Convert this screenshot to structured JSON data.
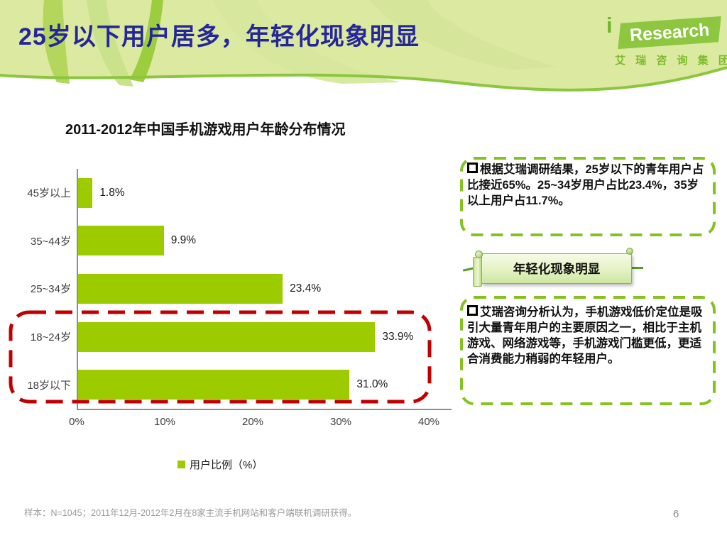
{
  "slide": {
    "title": "25岁以下用户居多，年轻化现象明显",
    "footnote": "样本：N=1045；2011年12月-2012年2月在8家主流手机网站和客户端联机调研获得。",
    "page_number": "6"
  },
  "logo": {
    "i_letter": "i",
    "wordmark": "Research",
    "subtitle": "艾 瑞 咨 询 集 团"
  },
  "chart_data": {
    "type": "bar",
    "orientation": "horizontal",
    "title": "2011-2012年中国手机游戏用户年龄分布情况",
    "categories": [
      "45岁以上",
      "35~44岁",
      "25~34岁",
      "18~24岁",
      "18岁以下"
    ],
    "values": [
      1.8,
      9.9,
      23.4,
      33.9,
      31.0
    ],
    "value_labels": [
      "1.8%",
      "9.9%",
      "23.4%",
      "33.9%",
      "31.0%"
    ],
    "x_ticks": [
      "0%",
      "10%",
      "20%",
      "30%",
      "40%"
    ],
    "xlim": [
      0,
      40
    ],
    "grid": false,
    "legend_label": "用户比例（%）",
    "legend_position": "bottom",
    "bar_color": "#9CCB00",
    "highlight_box": {
      "categories": [
        "18~24岁",
        "18岁以下"
      ],
      "color": "#C00000",
      "style": "red-dashed-rounded-box"
    }
  },
  "annotations": {
    "box1_text": "根据艾瑞调研结果，25岁以下的青年用户占比接近65%。25~34岁用户占比23.4%，35岁以上用户占11.7%。",
    "banner_label": "年轻化现象明显",
    "box2_text": "艾瑞咨询分析认为，手机游戏低价定位是吸引大量青年用户的主要原因之一，相比于主机游戏、网络游戏等，手机游戏门槛更低，更适合消费能力稍弱的年轻用户。"
  },
  "colors": {
    "accent_green": "#8DC63F",
    "bar_green": "#9CCB00",
    "title_blue": "#26269B",
    "highlight_red": "#C00000",
    "dashed_green": "#84C21E",
    "header_bg": "#DCE9A0",
    "axis_gray": "#8F8F8F"
  }
}
